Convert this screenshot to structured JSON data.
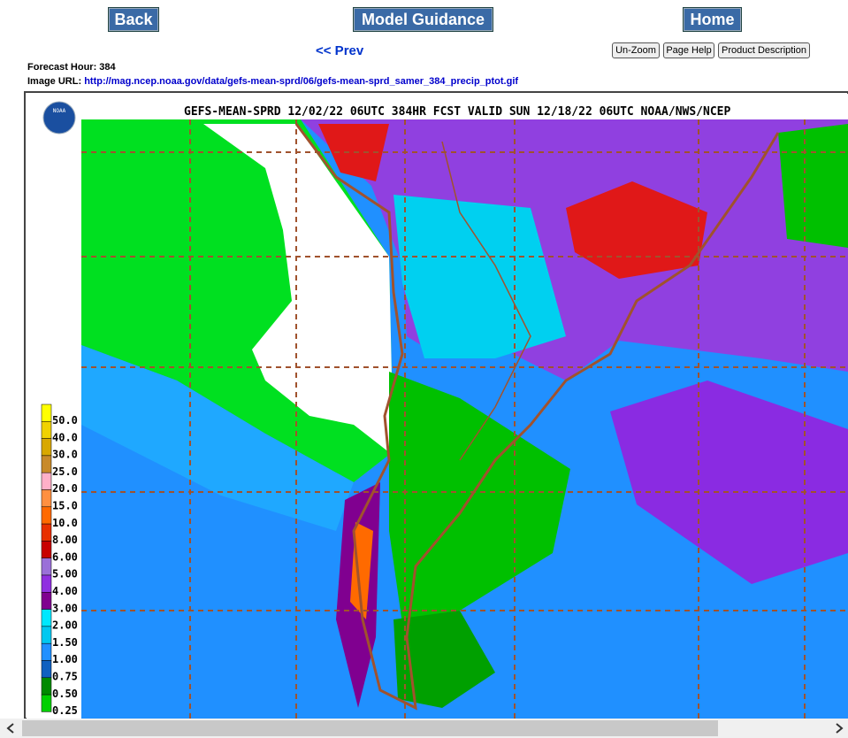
{
  "nav": {
    "back": "Back",
    "model_guidance": "Model Guidance",
    "home": "Home",
    "prev": "<< Prev",
    "buttons": [
      "Un-Zoom",
      "Page Help",
      "Product Description"
    ]
  },
  "info": {
    "forecast_hour": "Forecast Hour: 384",
    "image_url_label": "Image URL:",
    "image_url": "http://mag.ncep.noaa.gov/data/gefs-mean-sprd/06/gefs-mean-sprd_samer_384_precip_ptot.gif"
  },
  "map": {
    "header": "GEFS-MEAN-SPRD 12/02/22 06UTC 384HR FCST VALID SUN 12/18/22 06UTC NOAA/NWS/NCEP",
    "logo": "NOAA",
    "legend": [
      {
        "label": "50.0",
        "color": "#ffff00"
      },
      {
        "label": "40.0",
        "color": "#f0d200"
      },
      {
        "label": "30.0",
        "color": "#d8a800"
      },
      {
        "label": "25.0",
        "color": "#c88a2a"
      },
      {
        "label": "20.0",
        "color": "#ffb0c8"
      },
      {
        "label": "15.0",
        "color": "#ff9040"
      },
      {
        "label": "10.0",
        "color": "#ff6a00"
      },
      {
        "label": "8.00",
        "color": "#e83000"
      },
      {
        "label": "6.00",
        "color": "#c80000"
      },
      {
        "label": "5.00",
        "color": "#9a70d8"
      },
      {
        "label": "4.00",
        "color": "#9030e0"
      },
      {
        "label": "3.00",
        "color": "#800090"
      },
      {
        "label": "2.00",
        "color": "#00e8ff"
      },
      {
        "label": "1.50",
        "color": "#00c8f0"
      },
      {
        "label": "1.00",
        "color": "#2090ff"
      },
      {
        "label": "0.75",
        "color": "#1060c0"
      },
      {
        "label": "0.50",
        "color": "#008a00"
      },
      {
        "label": "0.25",
        "color": "#00d000"
      }
    ]
  }
}
